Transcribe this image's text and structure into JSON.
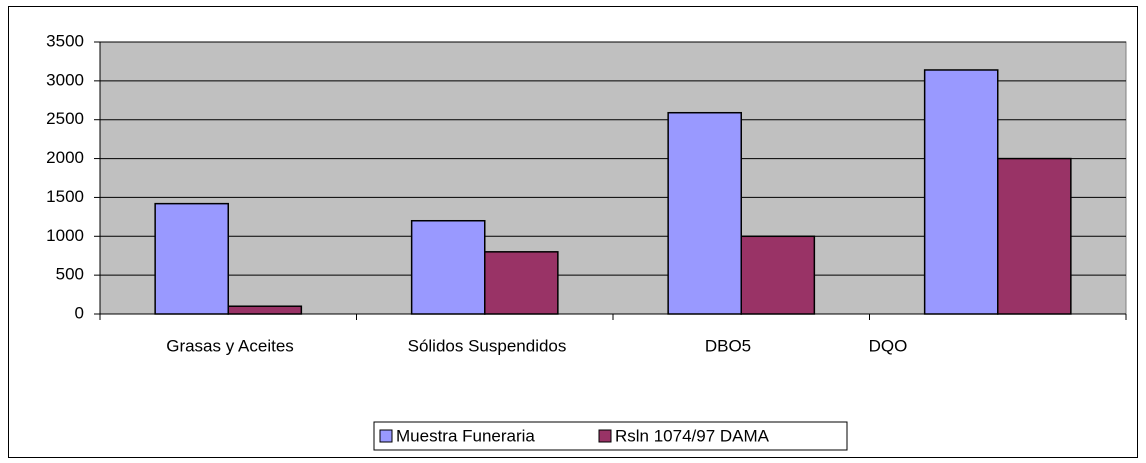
{
  "chart_data": {
    "type": "bar",
    "categories": [
      "Grasas y Aceites",
      "Sólidos Suspendidos",
      "DBO5",
      "DQO"
    ],
    "series": [
      {
        "name": "Muestra Funeraria",
        "color": "#9999ff",
        "values": [
          1420,
          1200,
          2590,
          3140
        ]
      },
      {
        "name": "Rsln 1074/97 DAMA",
        "color": "#993366",
        "values": [
          100,
          800,
          1000,
          2000
        ]
      }
    ],
    "ylim": [
      0,
      3500
    ],
    "yticks": [
      0,
      500,
      1000,
      1500,
      2000,
      2500,
      3000,
      3500
    ],
    "grid": true,
    "legend": "bottom"
  }
}
